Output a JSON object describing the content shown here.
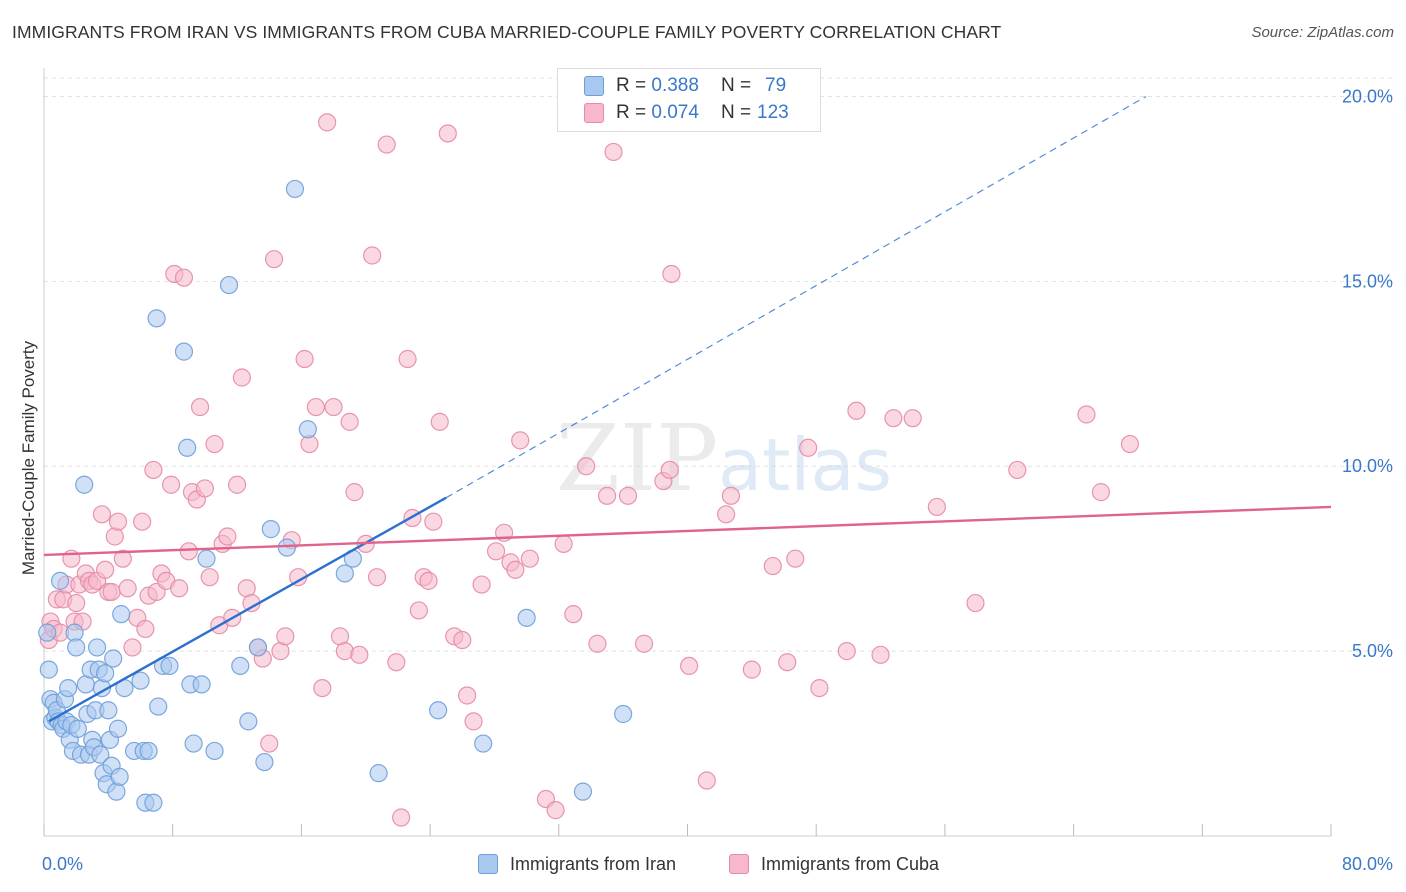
{
  "header": {
    "title": "IMMIGRANTS FROM IRAN VS IMMIGRANTS FROM CUBA MARRIED-COUPLE FAMILY POVERTY CORRELATION CHART",
    "source": "Source: ZipAtlas.com"
  },
  "watermark": {
    "zip": "ZIP",
    "atlas": "atlas"
  },
  "legend": {
    "iran": {
      "r_label": "R =",
      "r_value": "0.388",
      "n_label": "N =",
      "n_value": "79"
    },
    "cuba": {
      "r_label": "R =",
      "r_value": "0.074",
      "n_label": "N =",
      "n_value": "123"
    }
  },
  "colors": {
    "iran_fill": "#a9c8f0",
    "iran_stroke": "#6f9fd8",
    "iran_line": "#2b6fcf",
    "cuba_fill": "#f6b8ca",
    "cuba_stroke": "#e68aa6",
    "cuba_line": "#e0638d",
    "axis_text": "#3a78c9",
    "grid": "#e2e2e2"
  },
  "chart_data": {
    "type": "scatter",
    "title": "IMMIGRANTS FROM IRAN VS IMMIGRANTS FROM CUBA MARRIED-COUPLE FAMILY POVERTY CORRELATION CHART",
    "xlabel": "",
    "ylabel": "Married-Couple Family Poverty",
    "xlim": [
      0,
      80
    ],
    "ylim": [
      0,
      20.5
    ],
    "x_tick_labels": [
      "0.0%",
      "80.0%"
    ],
    "y_ticks": [
      5,
      10,
      15,
      20
    ],
    "y_tick_labels": [
      "5.0%",
      "10.0%",
      "15.0%",
      "20.0%"
    ],
    "grid": true,
    "series": [
      {
        "name": "Immigrants from Iran",
        "r": 0.388,
        "n": 79,
        "trend": {
          "x0": 0.3,
          "y0": 3.1,
          "x1": 25.0,
          "y1": 9.15,
          "dash_to_x": 68.5,
          "dash_to_y": 20.0
        },
        "points": [
          [
            0.2,
            5.5
          ],
          [
            0.3,
            4.5
          ],
          [
            0.4,
            3.7
          ],
          [
            0.5,
            3.1
          ],
          [
            0.6,
            3.6
          ],
          [
            0.7,
            3.2
          ],
          [
            0.8,
            3.4
          ],
          [
            0.9,
            3.1
          ],
          [
            1.0,
            6.9
          ],
          [
            1.1,
            3.0
          ],
          [
            1.2,
            2.9
          ],
          [
            1.3,
            3.7
          ],
          [
            1.4,
            3.1
          ],
          [
            1.5,
            4.0
          ],
          [
            1.6,
            2.6
          ],
          [
            1.7,
            3.0
          ],
          [
            1.8,
            2.3
          ],
          [
            1.9,
            5.5
          ],
          [
            2.0,
            5.1
          ],
          [
            2.1,
            2.9
          ],
          [
            2.3,
            2.2
          ],
          [
            2.5,
            9.5
          ],
          [
            2.6,
            4.1
          ],
          [
            2.7,
            3.3
          ],
          [
            2.8,
            2.2
          ],
          [
            2.9,
            4.5
          ],
          [
            3.0,
            2.6
          ],
          [
            3.1,
            2.4
          ],
          [
            3.2,
            3.4
          ],
          [
            3.3,
            5.1
          ],
          [
            3.4,
            4.5
          ],
          [
            3.5,
            2.2
          ],
          [
            3.6,
            4.0
          ],
          [
            3.7,
            1.7
          ],
          [
            3.8,
            4.4
          ],
          [
            3.9,
            1.4
          ],
          [
            4.0,
            3.4
          ],
          [
            4.1,
            2.6
          ],
          [
            4.2,
            1.9
          ],
          [
            4.3,
            4.8
          ],
          [
            4.5,
            1.2
          ],
          [
            4.6,
            2.9
          ],
          [
            4.7,
            1.6
          ],
          [
            4.8,
            6.0
          ],
          [
            5.0,
            4.0
          ],
          [
            5.6,
            2.3
          ],
          [
            6.0,
            4.2
          ],
          [
            6.2,
            2.3
          ],
          [
            6.3,
            0.9
          ],
          [
            6.5,
            2.3
          ],
          [
            6.8,
            0.9
          ],
          [
            7.0,
            14.0
          ],
          [
            7.1,
            3.5
          ],
          [
            7.4,
            4.6
          ],
          [
            7.8,
            4.6
          ],
          [
            8.7,
            13.1
          ],
          [
            8.9,
            10.5
          ],
          [
            9.1,
            4.1
          ],
          [
            9.3,
            2.5
          ],
          [
            9.8,
            4.1
          ],
          [
            10.1,
            7.5
          ],
          [
            10.6,
            2.3
          ],
          [
            11.5,
            14.9
          ],
          [
            12.2,
            4.6
          ],
          [
            12.7,
            3.1
          ],
          [
            13.3,
            5.1
          ],
          [
            13.7,
            2.0
          ],
          [
            14.1,
            8.3
          ],
          [
            15.1,
            7.8
          ],
          [
            15.6,
            17.5
          ],
          [
            16.4,
            11.0
          ],
          [
            18.7,
            7.1
          ],
          [
            19.2,
            7.5
          ],
          [
            20.8,
            1.7
          ],
          [
            24.5,
            3.4
          ],
          [
            27.3,
            2.5
          ],
          [
            30.0,
            5.9
          ],
          [
            33.5,
            1.2
          ],
          [
            36.0,
            3.3
          ]
        ]
      },
      {
        "name": "Immigrants from Cuba",
        "r": 0.074,
        "n": 123,
        "trend": {
          "x0": 0.0,
          "y0": 7.6,
          "x1": 80.0,
          "y1": 8.9
        },
        "points": [
          [
            0.3,
            5.3
          ],
          [
            0.4,
            5.8
          ],
          [
            0.6,
            5.6
          ],
          [
            0.8,
            6.4
          ],
          [
            1.0,
            5.5
          ],
          [
            1.2,
            6.4
          ],
          [
            1.4,
            6.8
          ],
          [
            1.7,
            7.5
          ],
          [
            1.9,
            5.8
          ],
          [
            2.0,
            6.3
          ],
          [
            2.2,
            6.8
          ],
          [
            2.4,
            5.8
          ],
          [
            2.6,
            7.1
          ],
          [
            2.8,
            6.9
          ],
          [
            3.0,
            6.8
          ],
          [
            3.3,
            6.9
          ],
          [
            3.6,
            8.7
          ],
          [
            3.8,
            7.2
          ],
          [
            4.0,
            6.6
          ],
          [
            4.2,
            6.6
          ],
          [
            4.4,
            8.1
          ],
          [
            4.6,
            8.5
          ],
          [
            4.9,
            7.5
          ],
          [
            5.2,
            6.7
          ],
          [
            5.5,
            5.1
          ],
          [
            5.8,
            5.9
          ],
          [
            6.1,
            8.5
          ],
          [
            6.3,
            5.6
          ],
          [
            6.5,
            6.5
          ],
          [
            6.8,
            9.9
          ],
          [
            7.0,
            6.6
          ],
          [
            7.3,
            7.1
          ],
          [
            7.6,
            6.9
          ],
          [
            7.9,
            9.5
          ],
          [
            8.1,
            15.2
          ],
          [
            8.4,
            6.7
          ],
          [
            8.7,
            15.1
          ],
          [
            9.0,
            7.7
          ],
          [
            9.2,
            9.3
          ],
          [
            9.5,
            9.1
          ],
          [
            9.7,
            11.6
          ],
          [
            10.0,
            9.4
          ],
          [
            10.3,
            7.0
          ],
          [
            10.6,
            10.6
          ],
          [
            10.9,
            5.7
          ],
          [
            11.1,
            7.9
          ],
          [
            11.4,
            8.1
          ],
          [
            11.7,
            5.9
          ],
          [
            12.0,
            9.5
          ],
          [
            12.3,
            12.4
          ],
          [
            12.6,
            6.7
          ],
          [
            12.9,
            6.3
          ],
          [
            13.3,
            5.1
          ],
          [
            13.6,
            4.8
          ],
          [
            14.0,
            2.5
          ],
          [
            14.3,
            15.6
          ],
          [
            14.7,
            5.0
          ],
          [
            15.0,
            5.4
          ],
          [
            15.4,
            8.0
          ],
          [
            15.8,
            7.0
          ],
          [
            16.2,
            12.9
          ],
          [
            16.5,
            10.6
          ],
          [
            16.9,
            11.6
          ],
          [
            17.3,
            4.0
          ],
          [
            17.6,
            19.3
          ],
          [
            18.0,
            11.6
          ],
          [
            18.4,
            5.4
          ],
          [
            18.7,
            5.0
          ],
          [
            19.0,
            11.2
          ],
          [
            19.3,
            9.3
          ],
          [
            19.6,
            4.9
          ],
          [
            20.0,
            7.9
          ],
          [
            20.4,
            15.7
          ],
          [
            20.7,
            7.0
          ],
          [
            21.3,
            18.7
          ],
          [
            21.9,
            4.7
          ],
          [
            22.2,
            0.5
          ],
          [
            22.6,
            12.9
          ],
          [
            22.9,
            8.6
          ],
          [
            23.3,
            6.1
          ],
          [
            23.6,
            7.0
          ],
          [
            23.9,
            6.9
          ],
          [
            24.2,
            8.5
          ],
          [
            24.6,
            11.2
          ],
          [
            25.1,
            19.0
          ],
          [
            25.5,
            5.4
          ],
          [
            26.0,
            5.3
          ],
          [
            26.3,
            3.8
          ],
          [
            26.7,
            3.1
          ],
          [
            27.2,
            6.8
          ],
          [
            28.1,
            7.7
          ],
          [
            28.6,
            8.2
          ],
          [
            29.0,
            7.4
          ],
          [
            29.3,
            7.2
          ],
          [
            29.6,
            10.7
          ],
          [
            30.2,
            7.5
          ],
          [
            31.2,
            1.0
          ],
          [
            31.8,
            0.7
          ],
          [
            32.3,
            7.9
          ],
          [
            32.9,
            6.0
          ],
          [
            33.7,
            10.0
          ],
          [
            34.4,
            5.2
          ],
          [
            35.0,
            9.2
          ],
          [
            35.4,
            18.5
          ],
          [
            36.3,
            9.2
          ],
          [
            37.3,
            5.2
          ],
          [
            38.5,
            9.6
          ],
          [
            38.9,
            9.9
          ],
          [
            39.0,
            15.2
          ],
          [
            40.1,
            4.6
          ],
          [
            41.2,
            1.5
          ],
          [
            42.4,
            8.7
          ],
          [
            42.7,
            9.2
          ],
          [
            44.0,
            4.5
          ],
          [
            45.3,
            7.3
          ],
          [
            46.2,
            4.7
          ],
          [
            46.7,
            7.5
          ],
          [
            47.5,
            10.5
          ],
          [
            48.2,
            4.0
          ],
          [
            49.9,
            5.0
          ],
          [
            50.5,
            11.5
          ],
          [
            52.0,
            4.9
          ],
          [
            52.8,
            11.3
          ],
          [
            54.0,
            11.3
          ],
          [
            55.5,
            8.9
          ],
          [
            57.9,
            6.3
          ],
          [
            60.5,
            9.9
          ],
          [
            64.8,
            11.4
          ],
          [
            65.7,
            9.3
          ],
          [
            67.5,
            10.6
          ]
        ]
      }
    ]
  }
}
